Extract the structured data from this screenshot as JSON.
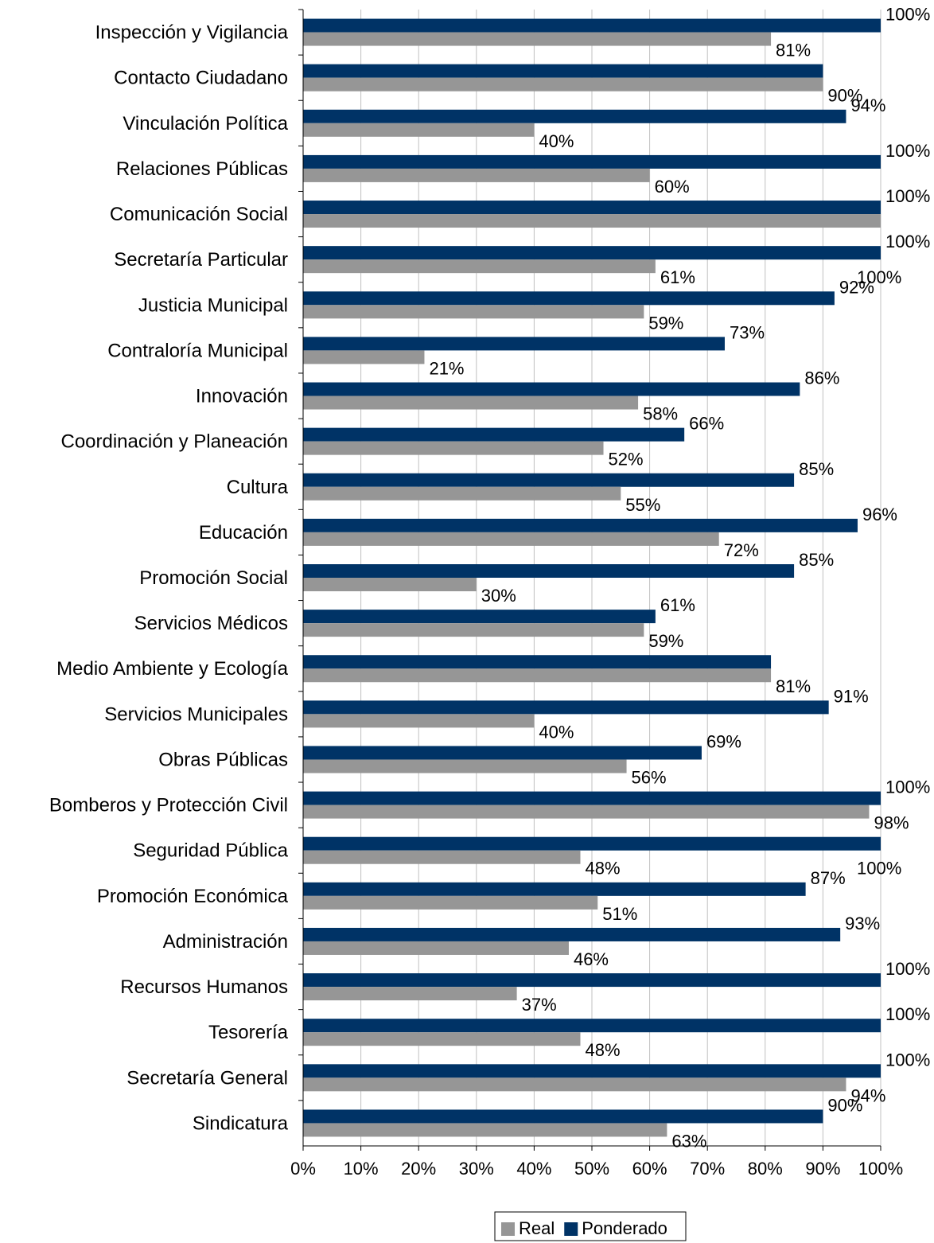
{
  "chart_data": {
    "type": "bar",
    "orientation": "horizontal",
    "categories": [
      "Inspección y Vigilancia",
      "Contacto Ciudadano",
      "Vinculación Política",
      "Relaciones Públicas",
      "Comunicación Social",
      "Secretaría Particular",
      "Justicia Municipal",
      "Contraloría Municipal",
      "Innovación",
      "Coordinación y Planeación",
      "Cultura",
      "Educación",
      "Promoción Social",
      "Servicios Médicos",
      "Medio Ambiente y Ecología",
      "Servicios Municipales",
      "Obras Públicas",
      "Bomberos y Protección Civil",
      "Seguridad Pública",
      "Promoción Económica",
      "Administración",
      "Recursos Humanos",
      "Tesorería",
      "Secretaría General",
      "Sindicatura"
    ],
    "series": [
      {
        "name": "Ponderado",
        "color": "#003366",
        "values": [
          100,
          90,
          94,
          100,
          100,
          100,
          92,
          73,
          86,
          66,
          85,
          96,
          85,
          61,
          81,
          91,
          69,
          100,
          100,
          87,
          93,
          100,
          100,
          100,
          90
        ],
        "labels": [
          "100%",
          "",
          "94%",
          "100%",
          "100%",
          "100%",
          "92%",
          "73%",
          "86%",
          "66%",
          "85%",
          "96%",
          "85%",
          "61%",
          "",
          "91%",
          "69%",
          "100%",
          "",
          "87%",
          "93%",
          "100%",
          "100%",
          "100%",
          "90%"
        ]
      },
      {
        "name": "Real",
        "color": "#969696",
        "values": [
          81,
          90,
          40,
          60,
          100,
          61,
          59,
          21,
          58,
          52,
          55,
          72,
          30,
          59,
          81,
          40,
          56,
          98,
          48,
          51,
          46,
          37,
          48,
          94,
          63
        ],
        "labels": [
          "81%",
          "90%",
          "40%",
          "60%",
          "",
          "61%",
          "59%",
          "21%",
          "58%",
          "52%",
          "55%",
          "72%",
          "30%",
          "59%",
          "81%",
          "40%",
          "56%",
          "98%",
          "48%",
          "51%",
          "46%",
          "37%",
          "48%",
          "94%",
          "63%"
        ]
      }
    ],
    "extra_labels": [
      {
        "category_index": 5,
        "text": "100%"
      },
      {
        "category_index": 18,
        "text": "100%"
      }
    ],
    "xlim": [
      0,
      100
    ],
    "x_ticks": [
      "0%",
      "10%",
      "20%",
      "30%",
      "40%",
      "50%",
      "60%",
      "70%",
      "80%",
      "90%",
      "100%"
    ],
    "grid": true,
    "legend": {
      "position": "bottom",
      "entries": [
        {
          "name": "Real",
          "color": "#969696"
        },
        {
          "name": "Ponderado",
          "color": "#003366"
        }
      ]
    },
    "title": "",
    "xlabel": "",
    "ylabel": ""
  }
}
